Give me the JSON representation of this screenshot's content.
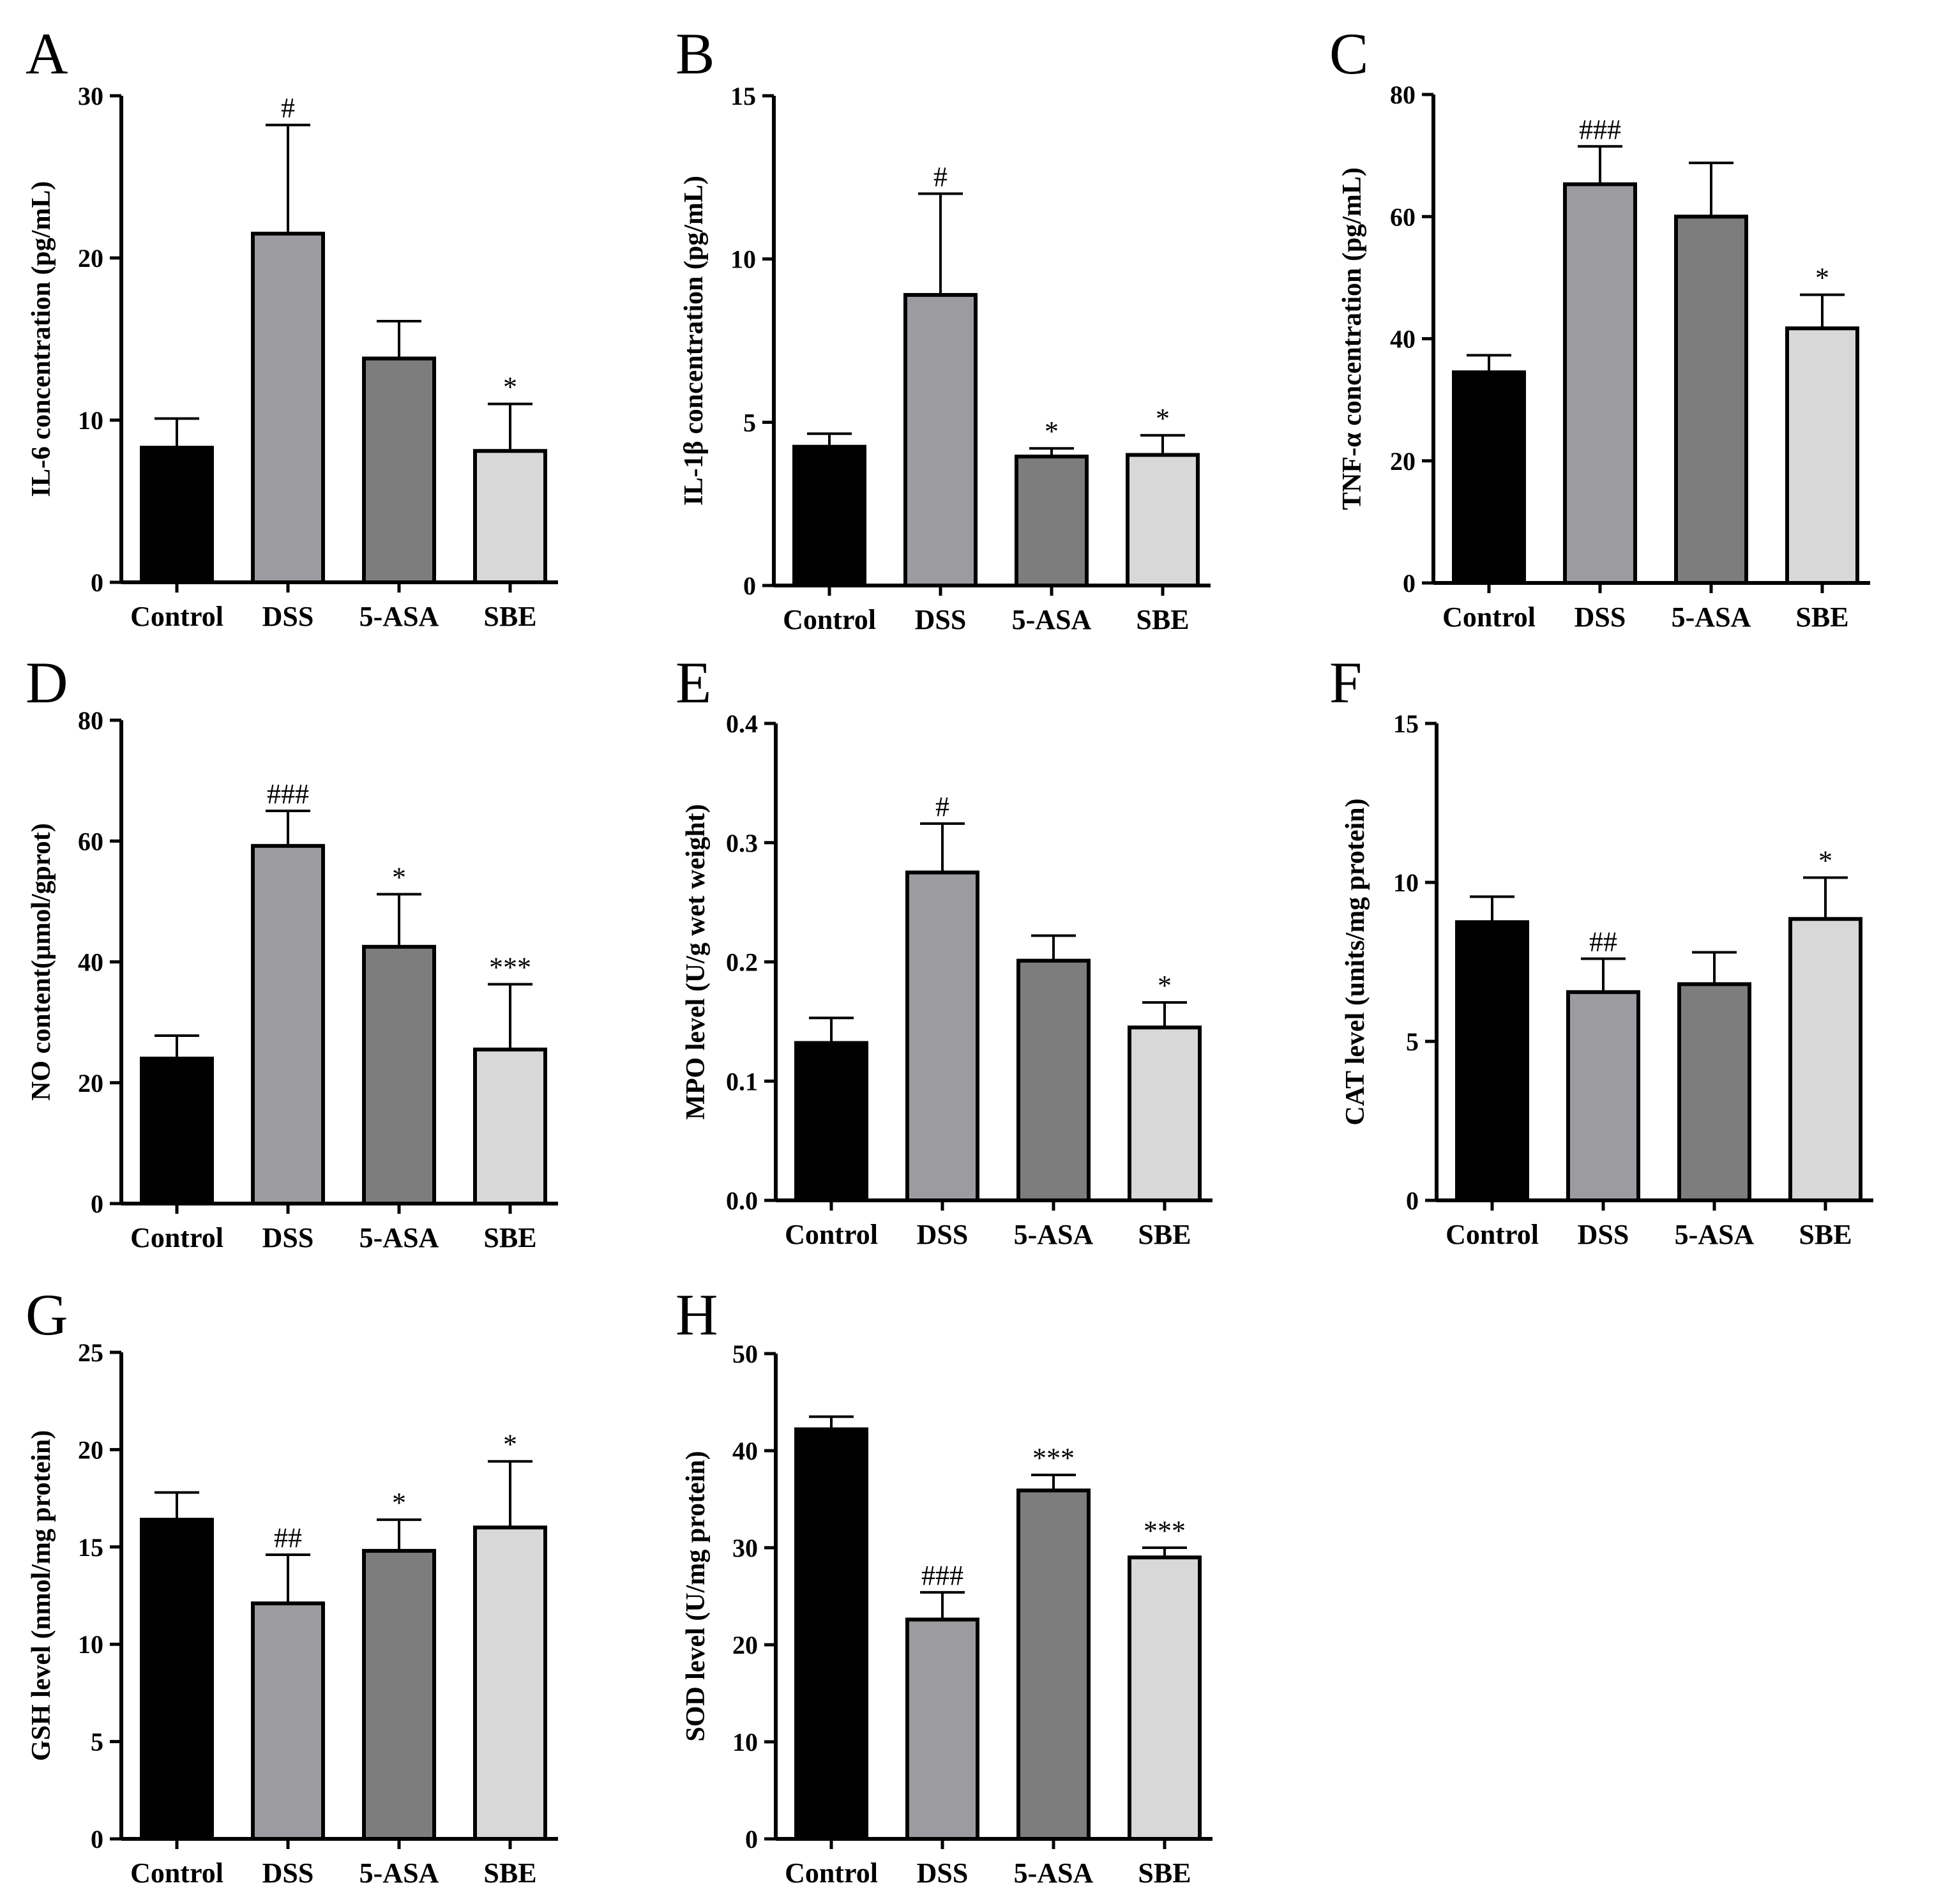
{
  "colors": [
    "#000000",
    "#9c9ca0",
    "#7d7d7d",
    "#d8d8d8"
  ],
  "chart_data": [
    {
      "panel": "A",
      "type": "bar",
      "categories": [
        "Control",
        "DSS",
        "5-ASA",
        "SBE"
      ],
      "values": [
        8.3,
        21.5,
        13.8,
        8.1
      ],
      "errors": [
        1.8,
        6.7,
        2.3,
        2.9
      ],
      "significance": [
        "",
        "#",
        "",
        "*"
      ],
      "ylabel": "IL-6 concentration (pg/mL)",
      "ylim": [
        0,
        30
      ],
      "yticks": [
        0,
        10,
        20,
        30
      ],
      "yticklabels": [
        "0",
        "10",
        "20",
        "30"
      ]
    },
    {
      "panel": "B",
      "type": "bar",
      "categories": [
        "Control",
        "DSS",
        "5-ASA",
        "SBE"
      ],
      "values": [
        4.25,
        8.9,
        3.95,
        4.0
      ],
      "errors": [
        0.4,
        3.1,
        0.25,
        0.6
      ],
      "significance": [
        "",
        "#",
        "*",
        "*"
      ],
      "ylabel": "IL-1β concentration (pg/mL)",
      "ylim": [
        0,
        15
      ],
      "yticks": [
        0,
        5,
        10,
        15
      ],
      "yticklabels": [
        "0",
        "5",
        "10",
        "15"
      ]
    },
    {
      "panel": "C",
      "type": "bar",
      "categories": [
        "Control",
        "DSS",
        "5-ASA",
        "SBE"
      ],
      "values": [
        34.5,
        65.3,
        60.0,
        41.7
      ],
      "errors": [
        2.8,
        6.2,
        8.8,
        5.5
      ],
      "significance": [
        "",
        "###",
        "",
        "*"
      ],
      "ylabel": "TNF-α concentration (pg/mL)",
      "ylim": [
        0,
        80
      ],
      "yticks": [
        0,
        20,
        40,
        60,
        80
      ],
      "yticklabels": [
        "0",
        "20",
        "40",
        "60",
        "80"
      ]
    },
    {
      "panel": "D",
      "type": "bar",
      "categories": [
        "Control",
        "DSS",
        "5-ASA",
        "SBE"
      ],
      "values": [
        24.0,
        59.2,
        42.5,
        25.5
      ],
      "errors": [
        3.8,
        5.8,
        8.7,
        10.8
      ],
      "significance": [
        "",
        "###",
        "*",
        "***"
      ],
      "ylabel": "NO content(μmol/gprot)",
      "ylim": [
        0,
        80
      ],
      "yticks": [
        0,
        20,
        40,
        60,
        80
      ],
      "yticklabels": [
        "0",
        "20",
        "40",
        "60",
        "80"
      ]
    },
    {
      "panel": "E",
      "type": "bar",
      "categories": [
        "Control",
        "DSS",
        "5-ASA",
        "SBE"
      ],
      "values": [
        0.132,
        0.275,
        0.201,
        0.145
      ],
      "errors": [
        0.021,
        0.041,
        0.021,
        0.021
      ],
      "significance": [
        "",
        "#",
        "",
        "*"
      ],
      "ylabel": "MPO level (U/g wet weight)",
      "ylim": [
        0,
        0.4
      ],
      "yticks": [
        0,
        0.1,
        0.2,
        0.3,
        0.4
      ],
      "yticklabels": [
        "0.0",
        "0.1",
        "0.2",
        "0.3",
        "0.4"
      ]
    },
    {
      "panel": "F",
      "type": "bar",
      "categories": [
        "Control",
        "DSS",
        "5-ASA",
        "SBE"
      ],
      "values": [
        8.75,
        6.55,
        6.8,
        8.85
      ],
      "errors": [
        0.8,
        1.05,
        1.0,
        1.3
      ],
      "significance": [
        "",
        "##",
        "",
        "*"
      ],
      "ylabel": "CAT level (units/mg  protein)",
      "ylim": [
        0,
        15
      ],
      "yticks": [
        0,
        5,
        10,
        15
      ],
      "yticklabels": [
        "0",
        "5",
        "10",
        "15"
      ]
    },
    {
      "panel": "G",
      "type": "bar",
      "categories": [
        "Control",
        "DSS",
        "5-ASA",
        "SBE"
      ],
      "values": [
        16.4,
        12.1,
        14.8,
        16.0
      ],
      "errors": [
        1.4,
        2.5,
        1.6,
        3.4
      ],
      "significance": [
        "",
        "##",
        "*",
        "*"
      ],
      "ylabel": "GSH level (nmol/mg  protein)",
      "ylim": [
        0,
        25
      ],
      "yticks": [
        0,
        5,
        10,
        15,
        20,
        25
      ],
      "yticklabels": [
        "0",
        "5",
        "10",
        "15",
        "20",
        "25"
      ]
    },
    {
      "panel": "H",
      "type": "bar",
      "categories": [
        "Control",
        "DSS",
        "5-ASA",
        "SBE"
      ],
      "values": [
        42.2,
        22.6,
        35.9,
        29.0
      ],
      "errors": [
        1.3,
        2.8,
        1.6,
        1.0
      ],
      "significance": [
        "",
        "###",
        "***",
        "***"
      ],
      "ylabel": "SOD level (U/mg protein)",
      "ylim": [
        0,
        50
      ],
      "yticks": [
        0,
        10,
        20,
        30,
        40,
        50
      ],
      "yticklabels": [
        "0",
        "10",
        "20",
        "30",
        "40",
        "50"
      ]
    }
  ]
}
